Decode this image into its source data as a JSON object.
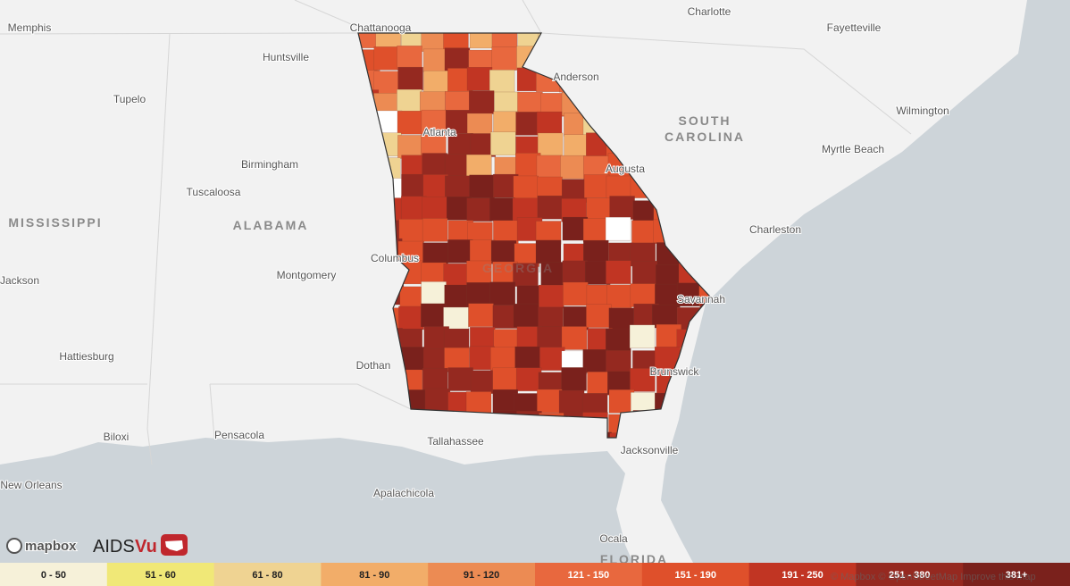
{
  "map": {
    "places": [
      "Memphis",
      "Chattanooga",
      "Charlotte",
      "Fayetteville",
      "Huntsville",
      "Anderson",
      "Tupelo",
      "Wilmington",
      "Birmingham",
      "Myrtle Beach",
      "Tuscaloosa",
      "Charleston",
      "Montgomery",
      "Jackson",
      "Augusta",
      "Hattiesburg",
      "Dothan",
      "Biloxi",
      "Pensacola",
      "Tallahassee",
      "Jacksonville",
      "New Orleans",
      "Apalachicola",
      "Ocala",
      "Columbus",
      "Atlanta",
      "Savannah",
      "Brunswick"
    ],
    "regions": [
      "SOUTH",
      "CAROLINA",
      "MISSISSIPPI",
      "ALABAMA",
      "GEORGIA",
      "FLORIDA"
    ]
  },
  "legend": {
    "bins": [
      {
        "label": "0 - 50",
        "color": "#f6f1d9"
      },
      {
        "label": "51 - 60",
        "color": "#f0e877"
      },
      {
        "label": "61 - 80",
        "color": "#efd392"
      },
      {
        "label": "81 - 90",
        "color": "#f2ad69"
      },
      {
        "label": "91 - 120",
        "color": "#ec8b53"
      },
      {
        "label": "121 - 150",
        "color": "#e8683e"
      },
      {
        "label": "151 - 190",
        "color": "#df502b"
      },
      {
        "label": "191 - 250",
        "color": "#c13523"
      },
      {
        "label": "251 - 380",
        "color": "#952920"
      },
      {
        "label": "381+",
        "color": "#7a211c"
      }
    ]
  },
  "logos": {
    "mapbox": "mapbox",
    "aids": "AIDS",
    "vu": "Vu"
  },
  "attribution": "© Mapbox © OpenStreetMap Improve this map"
}
